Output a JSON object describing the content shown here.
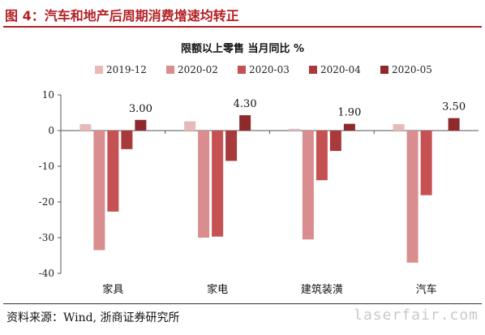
{
  "figure": {
    "title": "图 4：汽车和地产后周期消费增速均转正",
    "source": "资料来源：Wind, 浙商证券研究所",
    "watermark": "laserfair.com"
  },
  "colors": {
    "title_red": "#b41f24",
    "series": [
      "#e9b9ba",
      "#d98d8f",
      "#c65152",
      "#a93a3c",
      "#8e2a2c"
    ]
  },
  "chart_data": {
    "type": "bar",
    "title": "限额以上零售 当月同比 %",
    "categories": [
      "家具",
      "家电",
      "建筑装潢",
      "汽车"
    ],
    "series": [
      {
        "name": "2019-12",
        "values": [
          1.8,
          2.6,
          0.5,
          1.8
        ]
      },
      {
        "name": "2020-02",
        "values": [
          -33.5,
          -30.0,
          -30.5,
          -37.0
        ]
      },
      {
        "name": "2020-03",
        "values": [
          -22.7,
          -29.7,
          -13.9,
          -18.1
        ]
      },
      {
        "name": "2020-04",
        "values": [
          -5.2,
          -8.5,
          -5.7,
          0.0
        ]
      },
      {
        "name": "2020-05",
        "values": [
          3.0,
          4.3,
          1.9,
          3.5
        ]
      }
    ],
    "data_labels": [
      "3.00",
      "4.30",
      "1.90",
      "3.50"
    ],
    "yticks": [
      "10",
      "0",
      "-10",
      "-20",
      "-30",
      "-40"
    ],
    "ylim": [
      -40,
      10
    ],
    "legend": "top",
    "grid": false
  }
}
